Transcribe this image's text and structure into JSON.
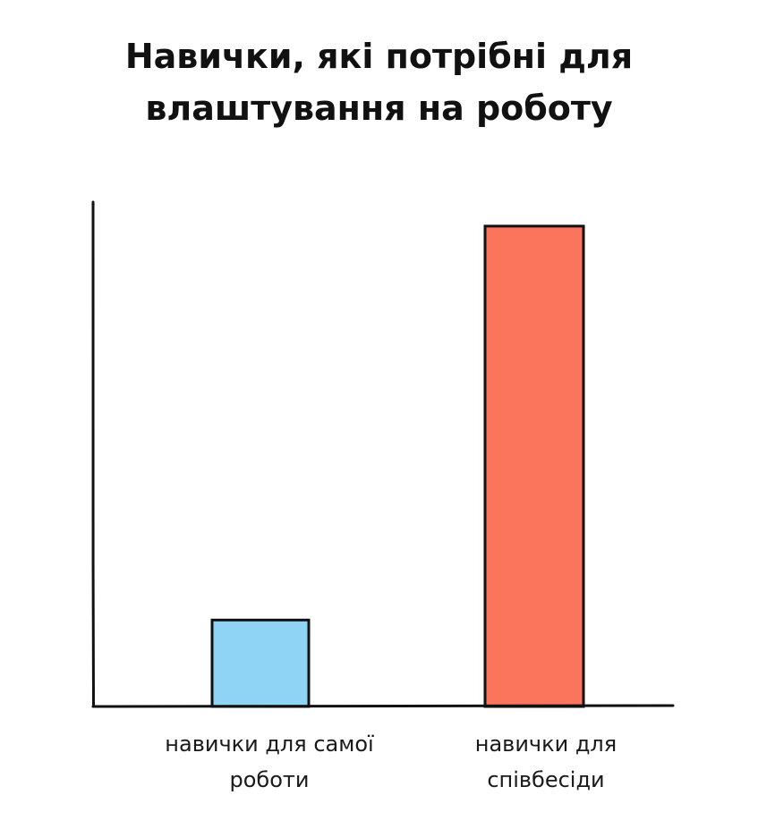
{
  "chart_data": {
    "type": "bar",
    "title": [
      "Навички, які потрібні для",
      "влаштування на роботу"
    ],
    "categories": [
      [
        "навички для самої",
        "роботи"
      ],
      [
        "навички для",
        "співбесіди"
      ]
    ],
    "values": [
      18,
      100
    ],
    "ylim": [
      0,
      105
    ],
    "colors": [
      "#90d4f5",
      "#fb745c"
    ],
    "grid": false,
    "legend": "none"
  }
}
